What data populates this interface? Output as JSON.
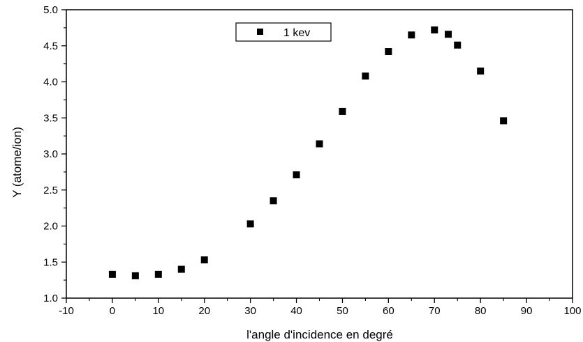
{
  "chart_data": {
    "type": "scatter",
    "xlabel": "l'angle d'incidence en degré",
    "ylabel": "Y (atome/ion)",
    "xlim": [
      -10,
      100
    ],
    "ylim": [
      1.0,
      5.0
    ],
    "x_ticks": [
      "-10",
      "0",
      "10",
      "20",
      "30",
      "40",
      "50",
      "60",
      "70",
      "80",
      "90",
      "100"
    ],
    "y_ticks": [
      "1.0",
      "1.5",
      "2.0",
      "2.5",
      "3.0",
      "3.5",
      "4.0",
      "4.5",
      "5.0"
    ],
    "legend_position": "top-center",
    "grid": false,
    "series": [
      {
        "name": "1 kev",
        "color": "#000000",
        "marker": "square",
        "x": [
          0,
          5,
          10,
          15,
          20,
          30,
          35,
          40,
          45,
          50,
          55,
          60,
          65,
          70,
          73,
          75,
          80,
          85
        ],
        "y": [
          1.33,
          1.31,
          1.33,
          1.4,
          1.53,
          2.03,
          2.35,
          2.71,
          3.14,
          3.59,
          4.08,
          4.42,
          4.65,
          4.72,
          4.66,
          4.51,
          4.15,
          3.46
        ]
      }
    ]
  }
}
